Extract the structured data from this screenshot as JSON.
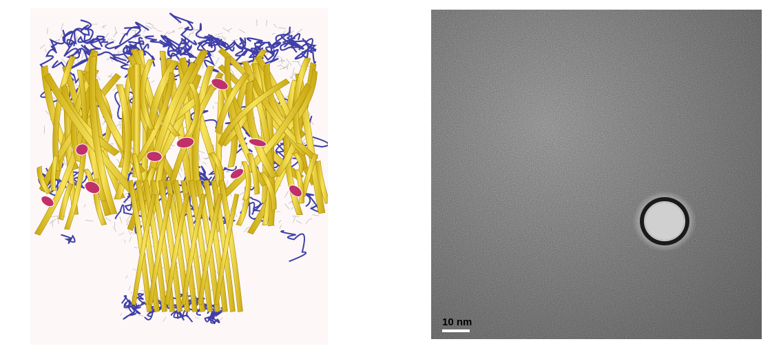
{
  "protein_image": {
    "icon": "protein-ribbon-model-icon",
    "colors": {
      "background": "#fdf7f7",
      "strand": "#e6c51a",
      "strand_highlight": "#f7e35a",
      "loop": "#3f3fa8",
      "helix": "#c0306a",
      "sidechain": "#8a8a8a"
    }
  },
  "tem_image": {
    "icon": "electron-micrograph-icon",
    "scale_bar": {
      "label": "10 nm"
    },
    "colors": {
      "background": "#7a7a7a",
      "particle_rim": "#1a1a1a",
      "particle_core": "#c8c8c8",
      "halo": "#e6e6e6"
    }
  }
}
